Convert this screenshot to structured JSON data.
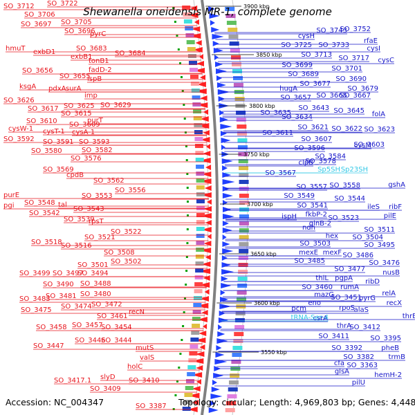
{
  "header": {
    "title": "Shewanella oneidensis MR-1, complete genome"
  },
  "footer": {
    "accession": "Accession: NC_004347",
    "topology": "Topology: circular; Length: 4,969,803 bp; Genes: 4,448"
  },
  "colors": {
    "left_genes": "#e8141c",
    "right_genes": "#1414c8",
    "rna_genes": "#32c8e6",
    "axis": "#808080"
  },
  "scale_labels": [
    "3900 kbp",
    "3850 kbp",
    "3800 kbp",
    "3750 kbp",
    "3700 kbp",
    "3650 kbp",
    "3600 kbp",
    "3550 kbp"
  ],
  "left_labels": [
    "SO_3712",
    "SO_3722",
    "SO_3706",
    "SO_3697",
    "SO_3705",
    "SO_3696",
    "pyrC",
    "hmuT",
    "SO_3683",
    "exbD1",
    "exbB1",
    "SO_3684",
    "tonB1",
    "SO_3656",
    "SO_3655",
    "fadD-2",
    "ispB",
    "ksgA",
    "pdxA",
    "surA",
    "imp",
    "SO_3626",
    "SO_3625",
    "SO_3629",
    "SO_3617",
    "SO_3615",
    "purT",
    "SO_3610",
    "SO_3609",
    "cysW-1",
    "cysT-1",
    "cysA-1",
    "SO_3592",
    "SO_3591",
    "SO_3593",
    "SO_3580",
    "SO_3582",
    "SO_3576",
    "SO_3569",
    "cpdB",
    "SO_3562",
    "SO_3556",
    "purE",
    "SO_3553",
    "pgi",
    "SO_3548",
    "tal",
    "SO_3543",
    "SO_3542",
    "SO_3539",
    "rpsT",
    "SO_3522",
    "SO_3521",
    "SO_3518",
    "SO_3516",
    "SO_3508",
    "SO_3501",
    "SO_3502",
    "SO_3499",
    "SO_3497",
    "SO_3494",
    "SO_3490",
    "SO_3488",
    "SO_3483",
    "SO_3481",
    "SO_3480",
    "SO_3475",
    "SO_3474",
    "SO_3472",
    "recN",
    "SO_3461",
    "SO_3458",
    "SO_3457",
    "SO_3454",
    "SO_3447",
    "SO_3446",
    "SO_3444",
    "mutS",
    "valS",
    "holC",
    "SO_3417.1",
    "slyD",
    "SO_3410",
    "SO_3409",
    "SO_3387"
  ],
  "right_labels": [
    "SO_3752",
    "SO_3743",
    "rfaE",
    "cysH",
    "SO_3725",
    "SO_3733",
    "cysI",
    "SO_3713",
    "SO_3717",
    "cysC",
    "SO_3699",
    "SO_3701",
    "SO_3689",
    "SO_3690",
    "SO_3677",
    "SO_3679",
    "hugA",
    "SO_3657",
    "SO_3665",
    "SO_3667",
    "SO_3643",
    "SO_3645",
    "folA",
    "SO_3635",
    "SO_3634",
    "SO_3621",
    "SO_3622",
    "SO_3623",
    "SO_3611",
    "SO_3607",
    "SO_3596",
    "cysM",
    "SO_3603",
    "SO_3584",
    "clpB",
    "SO_3578",
    "SO_3567",
    "SO_3557",
    "SO_3558",
    "gshA",
    "SO_3549",
    "SO_3544",
    "SO_3541",
    "ileS",
    "ribF",
    "ispH",
    "fkbP-2",
    "SO_3523",
    "pilE",
    "ndh",
    "glnB-2",
    "SO_3511",
    "hex",
    "SO_3504",
    "SO_3503",
    "SO_3495",
    "mexE",
    "mexF",
    "SO_3486",
    "SO_3485",
    "SO_3477",
    "SO_3476",
    "nusB",
    "pgpA",
    "ribD",
    "thiL",
    "rumA",
    "SO_3460",
    "relA",
    "mazG",
    "SO_3451",
    "pyrG",
    "eno",
    "recX",
    "pcm",
    "rpoS",
    "alaS",
    "csrA",
    "thrB",
    "thrA",
    "SO_3412",
    "SO_3411",
    "SO_3395",
    "SO_3392",
    "pheB",
    "SO_3382",
    "trmB",
    "cfa",
    "SO_3363",
    "glsA",
    "hemH-2",
    "pilU"
  ],
  "rna_labels": [
    "Sp5SH",
    "Sp23SH",
    "tRNA-Ser-4"
  ]
}
